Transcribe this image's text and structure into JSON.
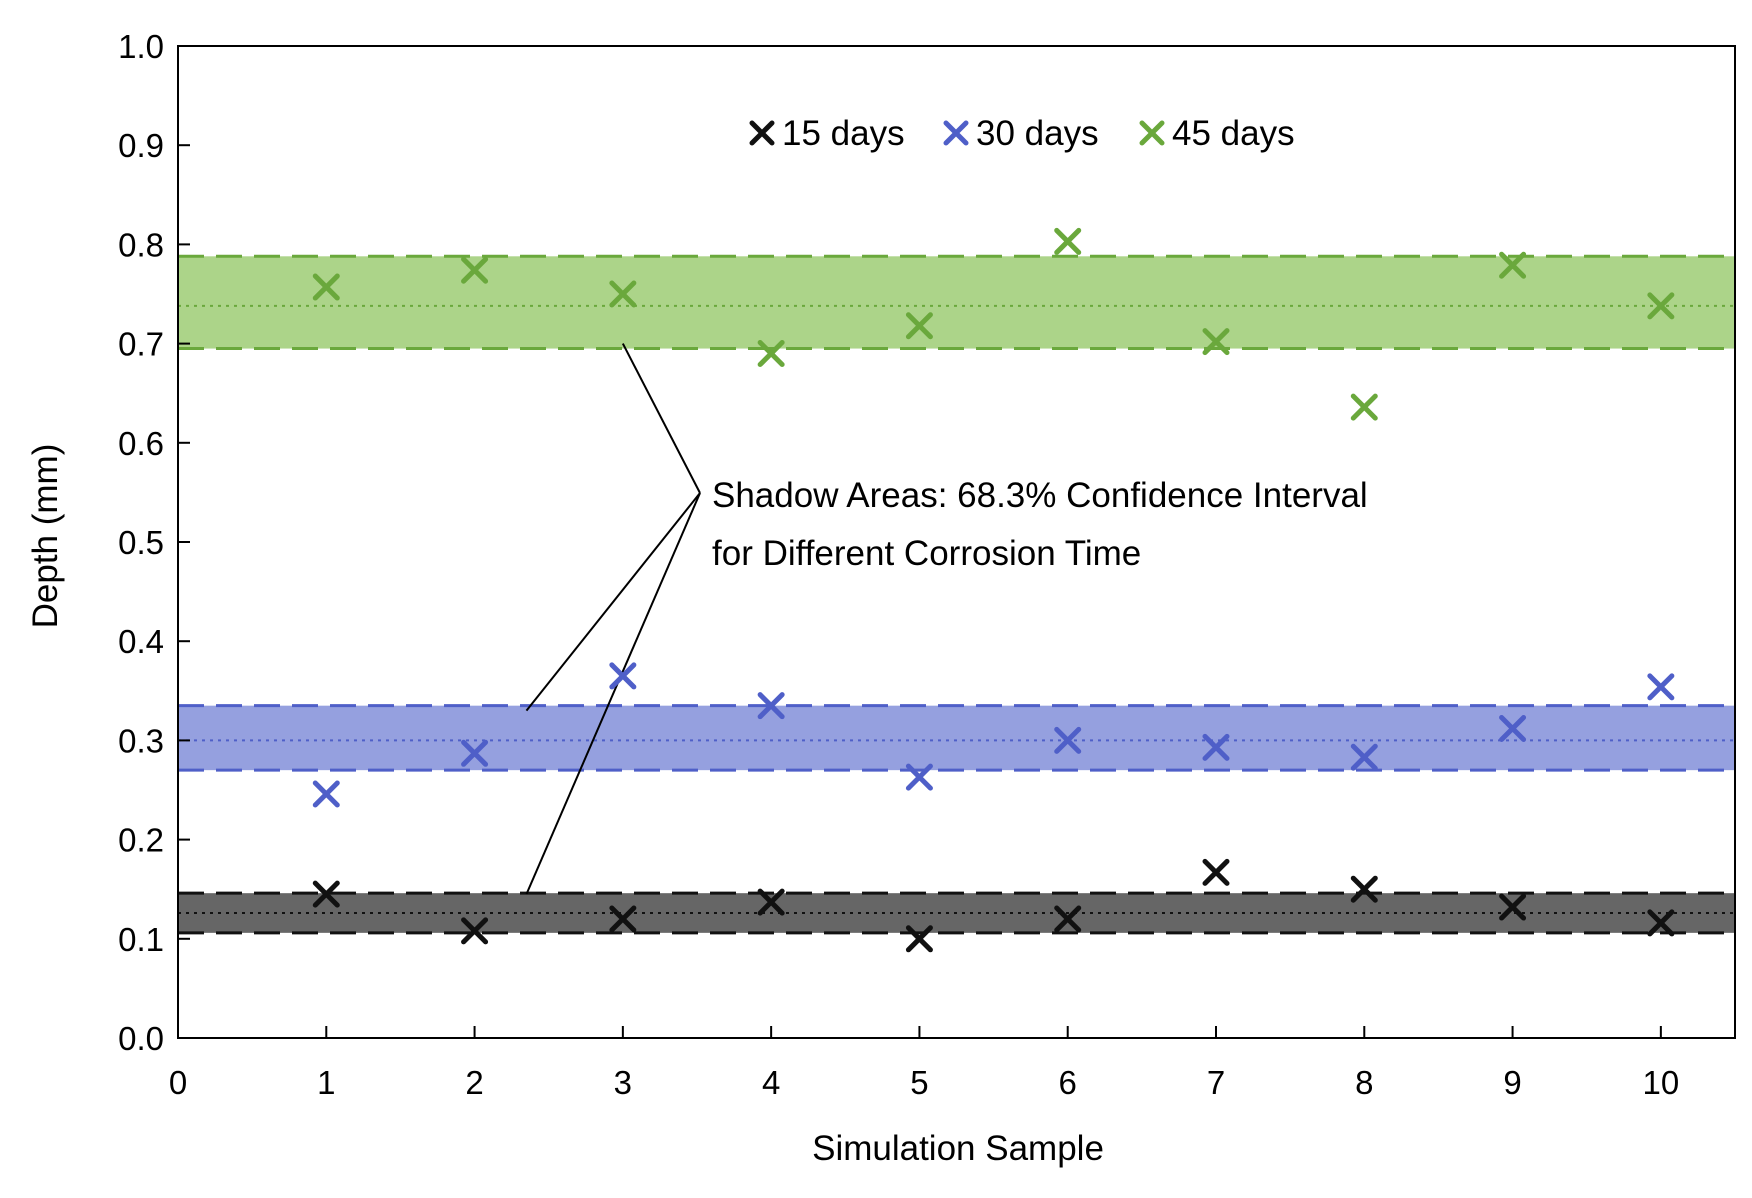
{
  "chart_data": {
    "type": "scatter",
    "xlabel": "Simulation Sample",
    "ylabel": "Depth (mm)",
    "xlim": [
      0,
      10.5
    ],
    "ylim": [
      0.0,
      1.0
    ],
    "x_ticks": [
      0,
      1,
      2,
      3,
      4,
      5,
      6,
      7,
      8,
      9,
      10
    ],
    "y_ticks": [
      "0.0",
      "0.1",
      "0.2",
      "0.3",
      "0.4",
      "0.5",
      "0.6",
      "0.7",
      "0.8",
      "0.9",
      "1.0"
    ],
    "legend_position": "top-center",
    "x": [
      1,
      2,
      3,
      4,
      5,
      6,
      7,
      8,
      9,
      10
    ],
    "series": [
      {
        "name": "15 days",
        "color": "#111111",
        "band_color": "#555555",
        "values": [
          0.145,
          0.108,
          0.12,
          0.137,
          0.1,
          0.12,
          0.167,
          0.15,
          0.132,
          0.116
        ],
        "mean": 0.126,
        "band": [
          0.106,
          0.146
        ]
      },
      {
        "name": "30 days",
        "color": "#4f5fc8",
        "band_color": "#8a96dc",
        "values": [
          0.246,
          0.287,
          0.365,
          0.335,
          0.263,
          0.3,
          0.293,
          0.283,
          0.312,
          0.354
        ],
        "mean": 0.3,
        "band": [
          0.27,
          0.335
        ]
      },
      {
        "name": "45 days",
        "color": "#6aa83c",
        "band_color": "#a3cf7c",
        "values": [
          0.757,
          0.774,
          0.75,
          0.69,
          0.718,
          0.803,
          0.702,
          0.636,
          0.779,
          0.738
        ],
        "mean": 0.738,
        "band": [
          0.695,
          0.788
        ]
      }
    ],
    "annotation": {
      "lines": [
        "Shadow Areas: 68.3% Confidence Interval",
        "for Different Corrosion Time"
      ]
    }
  }
}
